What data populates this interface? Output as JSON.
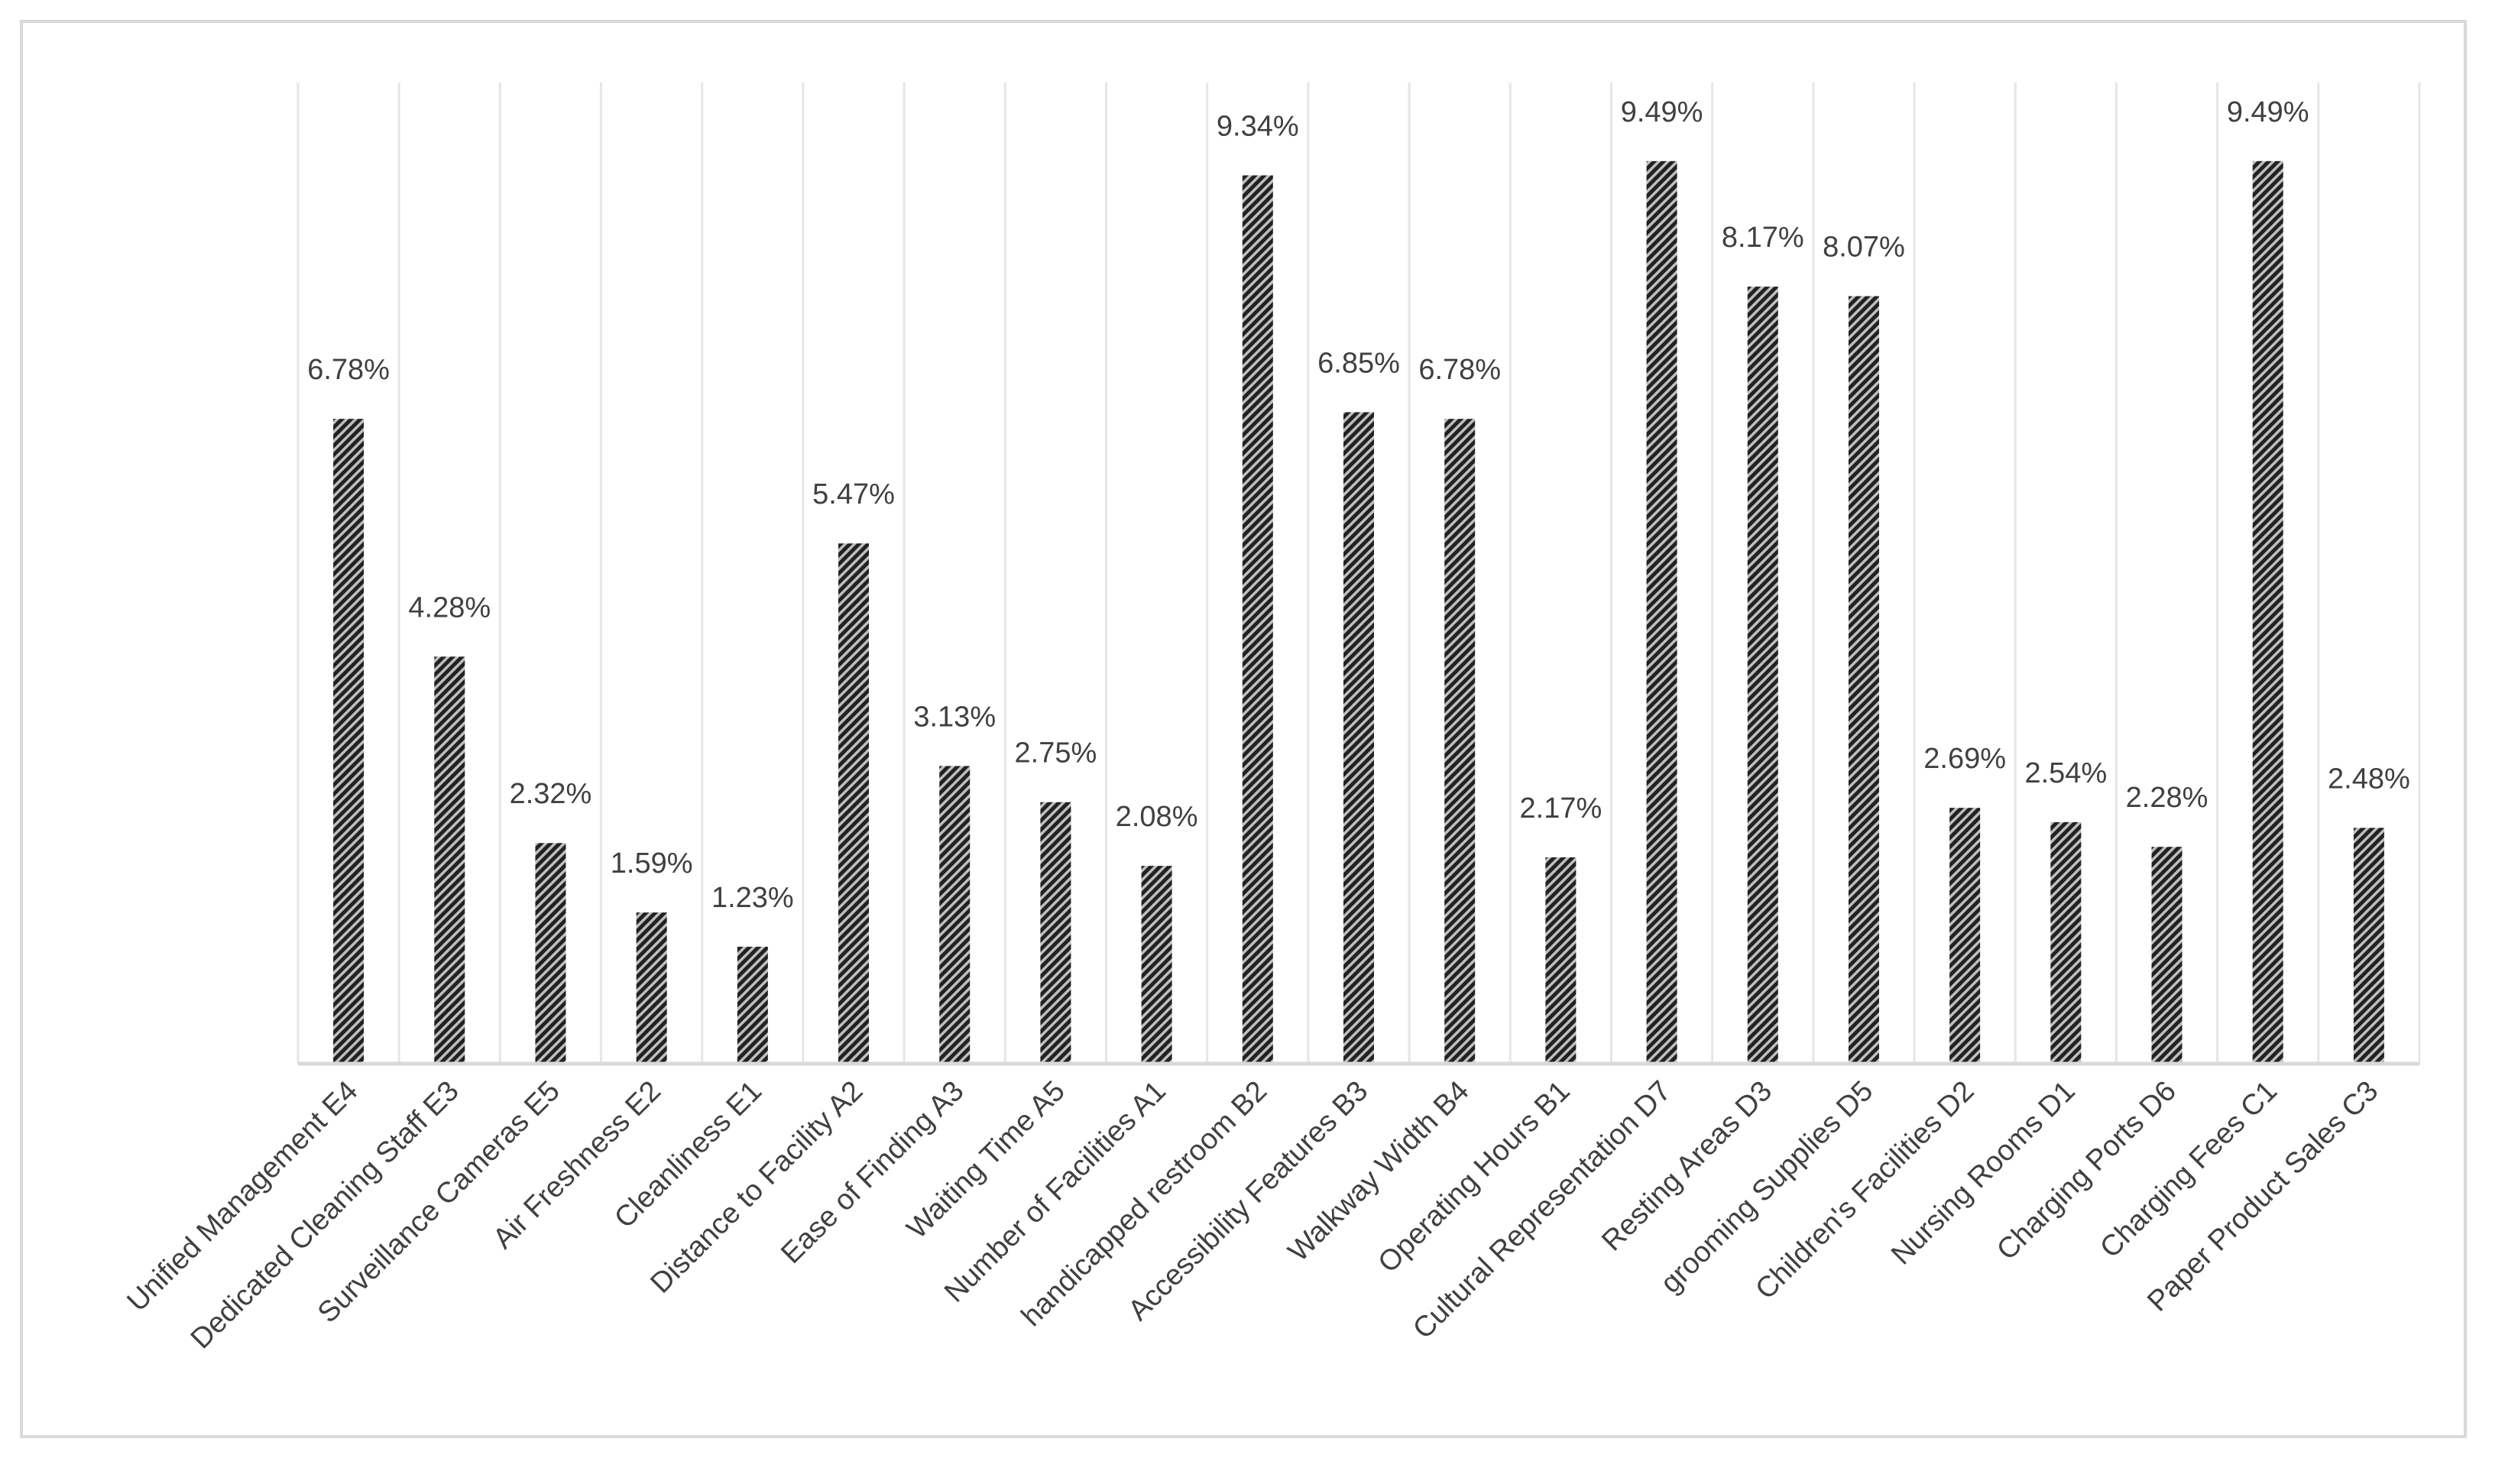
{
  "chart_data": {
    "type": "bar",
    "title": "",
    "xlabel": "",
    "ylabel": "",
    "ylim": [
      0,
      10.3
    ],
    "grid": "vertical",
    "legend": "none",
    "bar_pattern": "diagonal hatched black on grey",
    "colors": {
      "bar_dark": "#222222",
      "bar_light": "#bfbfbf",
      "gridline": "#e6e6e6",
      "axis": "#d9d9d9",
      "text": "#404040",
      "border": "#d9d9d9"
    },
    "categories": [
      "Unified Management E4",
      "Dedicated Cleaning Staff E3",
      "Surveillance Cameras E5",
      "Air Freshness E2",
      "Cleanliness E1",
      "Distance to Facility A2",
      "Ease of Finding A3",
      "Waiting Time A5",
      "Number of Facilities A1",
      "handicapped restroom B2",
      "Accessibility Features B3",
      "Walkway Width B4",
      "Operating Hours B1",
      "Cultural Representation D7",
      "Resting Areas D3",
      "grooming Supplies D5",
      "Children's Facilities D2",
      "Nursing Rooms D1",
      "Charging Ports D6",
      "Charging Fees C1",
      "Paper Product Sales C3"
    ],
    "values": [
      6.78,
      4.28,
      2.32,
      1.59,
      1.23,
      5.47,
      3.13,
      2.75,
      2.08,
      9.34,
      6.85,
      6.78,
      2.17,
      9.49,
      8.17,
      8.07,
      2.69,
      2.54,
      2.28,
      9.49,
      2.48
    ],
    "data_labels": [
      "6.78%",
      "4.28%",
      "2.32%",
      "1.59%",
      "1.23%",
      "5.47%",
      "3.13%",
      "2.75%",
      "2.08%",
      "9.34%",
      "6.85%",
      "6.78%",
      "2.17%",
      "9.49%",
      "8.17%",
      "8.07%",
      "2.69%",
      "2.54%",
      "2.28%",
      "9.49%",
      "2.48%"
    ]
  }
}
